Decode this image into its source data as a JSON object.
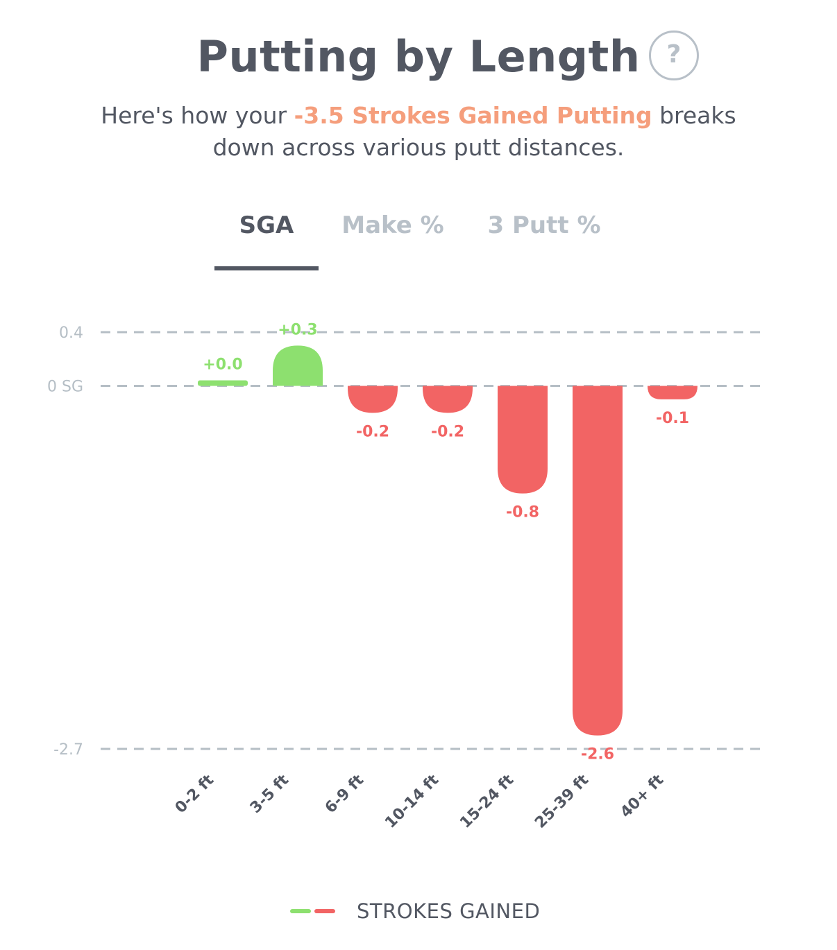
{
  "header": {
    "title": "Putting by Length",
    "help_label": "?"
  },
  "subtitle": {
    "prefix": "Here's how your ",
    "highlight": "-3.5 Strokes Gained Putting",
    "line1_suffix": " breaks",
    "line2": "down across various putt distances."
  },
  "tabs": [
    {
      "label": "SGA",
      "active": true
    },
    {
      "label": "Make %",
      "active": false
    },
    {
      "label": "3 Putt %",
      "active": false
    }
  ],
  "colors": {
    "positive": "#8de06f",
    "negative": "#f26464",
    "grid": "#b5bec5",
    "axis_text": "#b5bec5",
    "tick_text": "#525762",
    "highlight": "#f59e7c"
  },
  "chart_data": {
    "type": "bar",
    "categories": [
      "0-2 ft",
      "3-5 ft",
      "6-9 ft",
      "10-14 ft",
      "15-24 ft",
      "25-39 ft",
      "40+ ft"
    ],
    "values": [
      0.0,
      0.3,
      -0.2,
      -0.2,
      -0.8,
      -2.6,
      -0.1
    ],
    "value_labels": [
      "+0.0",
      "+0.3",
      "-0.2",
      "-0.2",
      "-0.8",
      "-2.6",
      "-0.1"
    ],
    "ylim": [
      -2.7,
      0.4
    ],
    "yticks": [
      {
        "value": 0.4,
        "label": "0.4"
      },
      {
        "value": 0,
        "label": "0 SG"
      },
      {
        "value": -2.7,
        "label": "-2.7"
      }
    ],
    "grid": "dashed",
    "legend": {
      "label": "STROKES GAINED",
      "position": "bottom-center"
    }
  }
}
